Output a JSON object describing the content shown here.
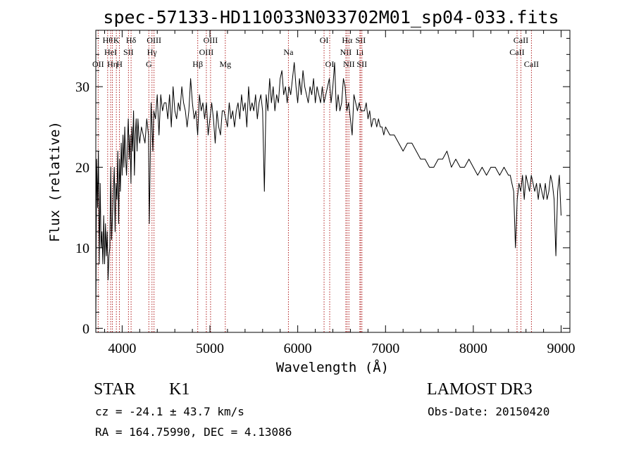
{
  "page": {
    "title": "spec-57133-HD110033N033702M01_sp04-033.fits"
  },
  "info": {
    "object_class": "STAR",
    "subclass": "K1",
    "survey": "LAMOST DR3",
    "redshift_text": "cz = -24.1 ± 43.7 km/s",
    "obs_date_text": "Obs-Date: 20150420",
    "coords_text": "RA = 164.75990, DEC =   4.13086"
  },
  "chart_data": {
    "type": "line",
    "title": "spec-57133-HD110033N033702M01_sp04-033.fits",
    "xlabel": "Wavelength (Å)",
    "ylabel": "Flux (relative)",
    "xlim": [
      3700,
      9100
    ],
    "ylim": [
      -0.5,
      37
    ],
    "x_ticks": [
      4000,
      5000,
      6000,
      7000,
      8000,
      9000
    ],
    "y_ticks": [
      0,
      10,
      20,
      30
    ],
    "x_minor_step": 200,
    "y_minor_step": 2,
    "line_color": "#000000",
    "marker_color": "#b22222",
    "series": [
      {
        "x": [
          3700,
          3710,
          3720,
          3730,
          3740,
          3750,
          3760,
          3770,
          3780,
          3790,
          3800,
          3810,
          3820,
          3830,
          3840,
          3850,
          3860,
          3870,
          3880,
          3890,
          3900,
          3910,
          3920,
          3930,
          3940,
          3950,
          3960,
          3970,
          3980,
          3990,
          4000,
          4010,
          4020,
          4030,
          4040,
          4050,
          4060,
          4070,
          4080,
          4090,
          4100,
          4110,
          4120,
          4130,
          4140,
          4150,
          4160,
          4170,
          4180,
          4190,
          4200,
          4220,
          4240,
          4260,
          4280,
          4300,
          4310,
          4320,
          4330,
          4340,
          4350,
          4360,
          4380,
          4400,
          4420,
          4440,
          4460,
          4480,
          4500,
          4520,
          4540,
          4560,
          4580,
          4600,
          4620,
          4640,
          4660,
          4680,
          4700,
          4720,
          4740,
          4760,
          4780,
          4800,
          4820,
          4840,
          4860,
          4880,
          4900,
          4920,
          4940,
          4960,
          4980,
          5000,
          5020,
          5040,
          5060,
          5080,
          5100,
          5120,
          5140,
          5160,
          5180,
          5200,
          5220,
          5240,
          5260,
          5280,
          5300,
          5320,
          5340,
          5360,
          5380,
          5400,
          5420,
          5440,
          5460,
          5480,
          5500,
          5520,
          5540,
          5560,
          5580,
          5600,
          5620,
          5640,
          5660,
          5680,
          5700,
          5720,
          5740,
          5760,
          5780,
          5800,
          5820,
          5840,
          5860,
          5880,
          5900,
          5920,
          5940,
          5960,
          5980,
          6000,
          6020,
          6040,
          6060,
          6080,
          6100,
          6120,
          6140,
          6160,
          6180,
          6200,
          6220,
          6240,
          6260,
          6280,
          6300,
          6320,
          6340,
          6360,
          6380,
          6400,
          6420,
          6440,
          6460,
          6480,
          6500,
          6520,
          6540,
          6560,
          6580,
          6600,
          6620,
          6640,
          6660,
          6680,
          6700,
          6720,
          6740,
          6760,
          6780,
          6800,
          6820,
          6840,
          6860,
          6880,
          6900,
          6920,
          6940,
          6960,
          6980,
          7000,
          7050,
          7100,
          7150,
          7200,
          7250,
          7300,
          7350,
          7400,
          7450,
          7500,
          7550,
          7600,
          7650,
          7700,
          7750,
          7800,
          7850,
          7900,
          7950,
          8000,
          8050,
          8100,
          8150,
          8200,
          8250,
          8300,
          8350,
          8400,
          8420,
          8440,
          8460,
          8480,
          8500,
          8520,
          8540,
          8560,
          8580,
          8600,
          8620,
          8640,
          8660,
          8680,
          8700,
          8720,
          8740,
          8760,
          8780,
          8800,
          8820,
          8840,
          8860,
          8880,
          8900,
          8920,
          8940,
          8960,
          8980,
          9000
        ],
        "y": [
          0,
          21,
          15,
          22,
          8,
          18,
          10,
          12,
          8,
          14,
          8,
          13,
          9,
          12,
          6,
          9,
          10,
          20,
          11,
          14,
          17,
          20,
          12,
          18,
          16,
          22,
          13,
          21,
          17,
          23,
          19,
          24,
          20,
          25,
          21,
          19,
          23,
          26,
          21,
          24,
          18,
          25,
          22,
          27,
          19,
          24,
          26,
          22,
          26,
          24,
          23,
          25,
          24,
          23,
          26,
          24,
          13,
          21,
          28,
          25,
          22,
          27,
          26,
          29,
          24,
          29,
          27,
          28,
          28,
          26,
          29,
          25,
          30,
          27,
          26,
          28,
          27,
          30,
          28,
          27,
          25,
          27,
          31,
          28,
          26,
          27,
          24,
          29,
          27,
          28,
          26,
          28,
          24,
          26,
          28,
          26,
          23,
          27,
          25,
          24,
          27,
          27,
          26,
          25,
          28,
          26,
          27,
          25,
          27,
          28,
          26,
          29,
          27,
          28,
          25,
          30,
          27,
          28,
          27,
          29,
          26,
          28,
          29,
          27,
          17,
          29,
          27,
          31,
          28,
          30,
          27,
          29,
          28,
          31,
          32,
          29,
          30,
          28,
          30,
          29,
          31,
          33,
          30,
          28,
          31,
          29,
          32,
          30,
          29,
          28,
          30,
          29,
          31,
          28,
          30,
          29,
          28,
          30,
          28,
          29,
          30,
          31,
          28,
          30,
          33,
          27,
          29,
          27,
          28,
          31,
          30,
          27,
          28,
          26,
          24,
          29,
          28,
          27,
          28,
          27,
          27,
          27,
          28,
          26,
          27,
          25,
          26,
          26,
          25,
          26,
          25,
          25,
          24,
          25,
          24,
          24,
          23,
          22,
          23,
          23,
          22,
          21,
          21,
          20,
          20,
          21,
          21,
          22,
          20,
          21,
          20,
          20,
          21,
          20,
          19,
          20,
          19,
          20,
          20,
          19,
          20,
          19,
          19,
          18,
          17,
          10,
          16,
          18,
          17,
          19,
          16,
          19,
          18,
          17,
          19,
          18,
          17,
          18,
          16,
          18,
          17,
          16,
          18,
          16,
          17,
          19,
          18,
          16,
          9,
          17,
          19,
          14
        ]
      }
    ],
    "spectral_lines": [
      {
        "x": 3727,
        "labels": [
          "OII"
        ],
        "row": 3
      },
      {
        "x": 3835,
        "labels": [
          "Hθ"
        ],
        "row": 1
      },
      {
        "x": 3869,
        "labels": [
          "HeI"
        ],
        "row": 2
      },
      {
        "x": 3889,
        "labels": [
          "Hη"
        ],
        "row": 3
      },
      {
        "x": 3934,
        "labels": [
          "K"
        ],
        "row": 1
      },
      {
        "x": 3969,
        "labels": [
          "H"
        ],
        "row": 3
      },
      {
        "x": 4072,
        "labels": [
          "SII"
        ],
        "row": 2
      },
      {
        "x": 4102,
        "labels": [
          "Hδ"
        ],
        "row": 1
      },
      {
        "x": 4304,
        "labels": [
          "G"
        ],
        "row": 3
      },
      {
        "x": 4340,
        "labels": [
          "Hγ"
        ],
        "row": 2
      },
      {
        "x": 4363,
        "labels": [
          "OIII"
        ],
        "row": 1
      },
      {
        "x": 4861,
        "labels": [
          "Hβ"
        ],
        "row": 3
      },
      {
        "x": 4959,
        "labels": [
          "OIII"
        ],
        "row": 2
      },
      {
        "x": 5007,
        "labels": [
          "OIII"
        ],
        "row": 1
      },
      {
        "x": 5175,
        "labels": [
          "Mg"
        ],
        "row": 3
      },
      {
        "x": 5894,
        "labels": [
          "Na"
        ],
        "row": 2
      },
      {
        "x": 6300,
        "labels": [
          "OI"
        ],
        "row": 1
      },
      {
        "x": 6364,
        "labels": [
          "OI"
        ],
        "row": 3
      },
      {
        "x": 6548,
        "labels": [
          "NII"
        ],
        "row": 2
      },
      {
        "x": 6563,
        "labels": [
          "Hα"
        ],
        "row": 1
      },
      {
        "x": 6583,
        "labels": [
          "NII"
        ],
        "row": 3
      },
      {
        "x": 6708,
        "labels": [
          "Li"
        ],
        "row": 2
      },
      {
        "x": 6716,
        "labels": [
          "SII"
        ],
        "row": 1
      },
      {
        "x": 6731,
        "labels": [
          "SII"
        ],
        "row": 3
      },
      {
        "x": 8498,
        "labels": [
          "CaII"
        ],
        "row": 2
      },
      {
        "x": 8542,
        "labels": [
          "CaII"
        ],
        "row": 1
      },
      {
        "x": 8662,
        "labels": [
          "CaII"
        ],
        "row": 3
      }
    ]
  }
}
